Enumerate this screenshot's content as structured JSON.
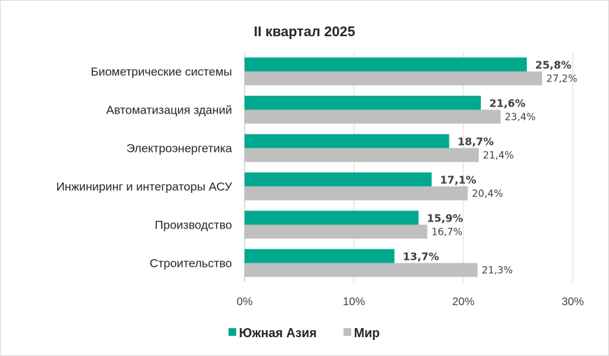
{
  "chart_data": {
    "type": "bar",
    "orientation": "horizontal",
    "title": "II квартал 2025",
    "categories": [
      "Биометрические системы",
      "Автоматизация зданий",
      "Электроэнергетика",
      "Инжиниринг и интеграторы АСУ",
      "Производство",
      "Строительство"
    ],
    "series": [
      {
        "name": "Южная Азия",
        "color": "#00a88e",
        "values": [
          25.8,
          21.6,
          18.7,
          17.1,
          15.9,
          13.7
        ],
        "labels": [
          "25,8%",
          "21,6%",
          "18,7%",
          "17,1%",
          "15,9%",
          "13,7%"
        ]
      },
      {
        "name": "Мир",
        "color": "#bfbfbf",
        "values": [
          27.2,
          23.4,
          21.4,
          20.4,
          16.7,
          21.3
        ],
        "labels": [
          "27,2%",
          "23,4%",
          "21,4%",
          "20,4%",
          "16,7%",
          "21,3%"
        ]
      }
    ],
    "xlim": [
      0,
      30
    ],
    "xticks": [
      0,
      10,
      20,
      30
    ],
    "xtick_labels": [
      "0%",
      "10%",
      "20%",
      "30%"
    ],
    "grid": "vertical",
    "legend": "bottom"
  }
}
